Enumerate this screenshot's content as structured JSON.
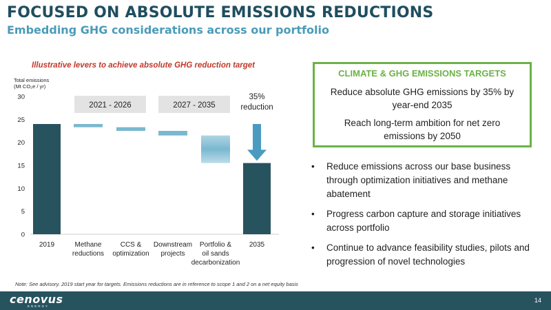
{
  "header": {
    "title": "FOCUSED ON ABSOLUTE EMISSIONS REDUCTIONS",
    "subtitle": "Embedding GHG considerations across our portfolio"
  },
  "chart_data": {
    "type": "waterfall",
    "title": "Illustrative levers to achieve absolute GHG reduction target",
    "ylabel": "Total emissions (Mt CO₂e / yr)",
    "ylim": [
      0,
      30
    ],
    "yticks": [
      0,
      5,
      10,
      15,
      20,
      25,
      30
    ],
    "bars": [
      {
        "label": "2019",
        "low": 0,
        "high": 24,
        "kind": "total"
      },
      {
        "label": "Methane reductions",
        "low": 23.3,
        "high": 24,
        "kind": "step"
      },
      {
        "label": "CCS & optimization",
        "low": 22.5,
        "high": 23.3,
        "kind": "step"
      },
      {
        "label": "Downstream projects",
        "low": 21.5,
        "high": 22.5,
        "kind": "step"
      },
      {
        "label": "Portfolio & oil sands decarbonization",
        "low": 15.5,
        "high": 21.5,
        "kind": "gradient"
      },
      {
        "label": "2035",
        "low": 0,
        "high": 15.5,
        "kind": "total"
      }
    ],
    "periods": [
      "2021 - 2026",
      "2027 - 2035"
    ],
    "reduction_label": "35% reduction",
    "colors": {
      "total": "#27535f",
      "step": "#7ab8d0",
      "period_box": "#e3e3e3"
    }
  },
  "targets": {
    "title": "CLIMATE & GHG EMISSIONS TARGETS",
    "items": [
      "Reduce absolute GHG emissions by 35% by year-end 2035",
      "Reach long-term ambition for net zero emissions by 2050"
    ]
  },
  "bullets": [
    "Reduce emissions across our base business through optimization initiatives and methane abatement",
    "Progress carbon capture and storage initiatives across portfolio",
    "Continue to advance feasibility studies, pilots and progression of novel technologies"
  ],
  "note": "Note: See advisory. 2019 start year for targets. Emissions reductions are in reference to scope 1 and 2 on a net equity basis",
  "footer": {
    "logo": "cenovus",
    "logo_sub": "ENERGY",
    "page_number": "14"
  }
}
